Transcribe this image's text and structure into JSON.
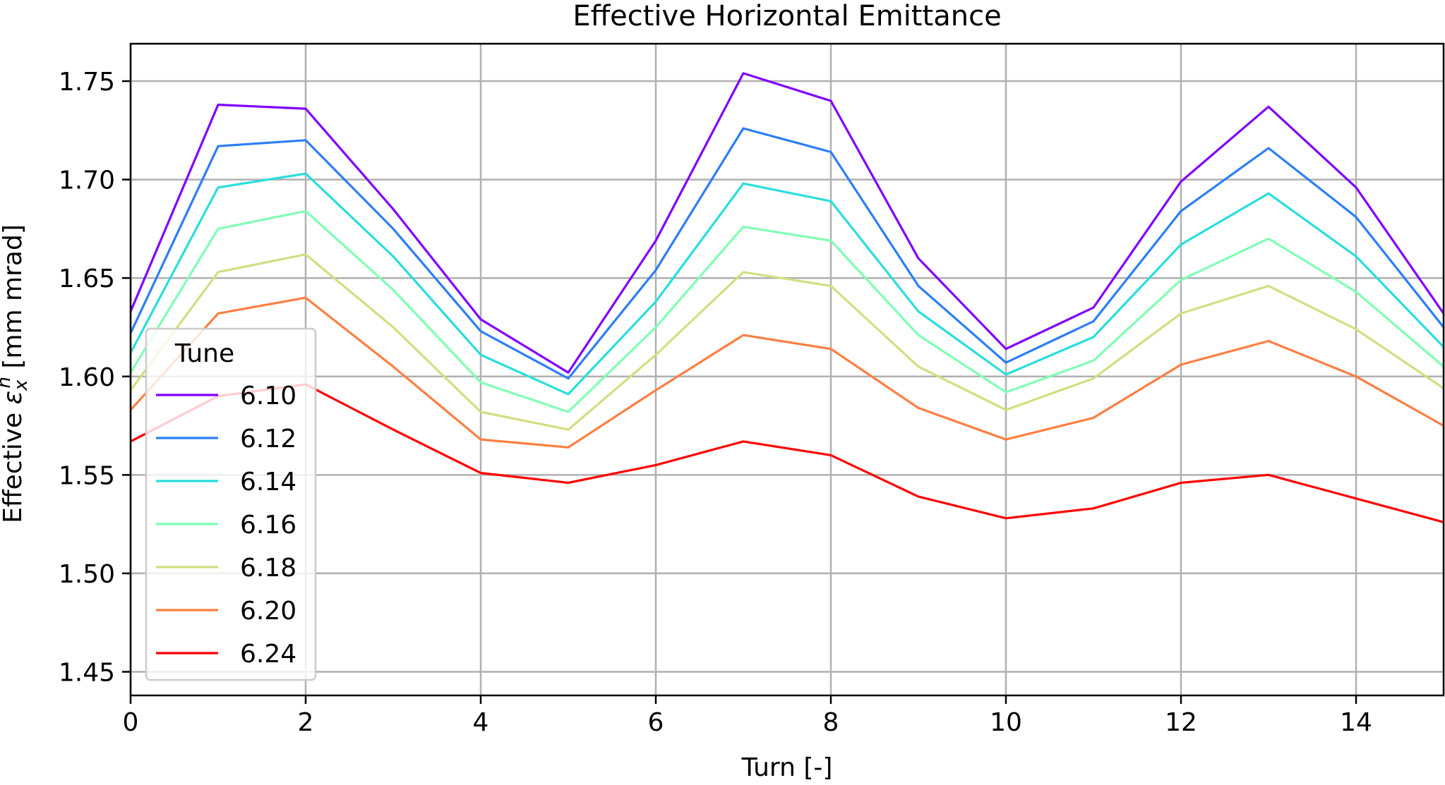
{
  "chart_data": {
    "type": "line",
    "title": "Effective Horizontal Emittance",
    "xlabel": "Turn [-]",
    "ylabel_prefix": "Effective ",
    "ylabel_symbol": "ε",
    "ylabel_sub": "x",
    "ylabel_sup": "n",
    "ylabel_suffix": " [mm mrad]",
    "xlim": [
      0,
      15
    ],
    "ylim": [
      1.438,
      1.769
    ],
    "xticks": [
      0,
      2,
      4,
      6,
      8,
      10,
      12,
      14
    ],
    "yticks": [
      1.45,
      1.5,
      1.55,
      1.6,
      1.65,
      1.7,
      1.75
    ],
    "xtick_labels": [
      "0",
      "2",
      "4",
      "6",
      "8",
      "10",
      "12",
      "14"
    ],
    "ytick_labels": [
      "1.45",
      "1.50",
      "1.55",
      "1.60",
      "1.65",
      "1.70",
      "1.75"
    ],
    "grid": true,
    "legend_title": "Tune",
    "legend_position": "lower left",
    "x": [
      0,
      1,
      2,
      3,
      4,
      5,
      6,
      7,
      8,
      9,
      10,
      11,
      12,
      13,
      14,
      15
    ],
    "series": [
      {
        "name": "6.10",
        "color": "#8000ff",
        "values": [
          1.633,
          1.738,
          1.736,
          1.685,
          1.629,
          1.602,
          1.669,
          1.754,
          1.74,
          1.66,
          1.614,
          1.635,
          1.699,
          1.737,
          1.696,
          1.632
        ]
      },
      {
        "name": "6.12",
        "color": "#2c7ef7",
        "values": [
          1.622,
          1.717,
          1.72,
          1.675,
          1.623,
          1.599,
          1.654,
          1.726,
          1.714,
          1.646,
          1.607,
          1.628,
          1.684,
          1.716,
          1.681,
          1.625
        ]
      },
      {
        "name": "6.14",
        "color": "#2adddd",
        "values": [
          1.612,
          1.696,
          1.703,
          1.661,
          1.611,
          1.591,
          1.638,
          1.698,
          1.689,
          1.633,
          1.601,
          1.62,
          1.667,
          1.693,
          1.661,
          1.615
        ]
      },
      {
        "name": "6.16",
        "color": "#80ffb4",
        "values": [
          1.602,
          1.675,
          1.684,
          1.644,
          1.597,
          1.582,
          1.625,
          1.676,
          1.669,
          1.621,
          1.592,
          1.608,
          1.649,
          1.67,
          1.643,
          1.605
        ]
      },
      {
        "name": "6.18",
        "color": "#d4dd80",
        "values": [
          1.593,
          1.653,
          1.662,
          1.625,
          1.582,
          1.573,
          1.611,
          1.653,
          1.646,
          1.605,
          1.583,
          1.599,
          1.632,
          1.646,
          1.624,
          1.594
        ]
      },
      {
        "name": "6.20",
        "color": "#ff7e41",
        "values": [
          1.583,
          1.632,
          1.64,
          1.605,
          1.568,
          1.564,
          1.593,
          1.621,
          1.614,
          1.584,
          1.568,
          1.579,
          1.606,
          1.618,
          1.6,
          1.575
        ]
      },
      {
        "name": "6.24",
        "color": "#ff0000",
        "values": [
          1.567,
          1.59,
          1.596,
          1.573,
          1.551,
          1.546,
          1.555,
          1.567,
          1.56,
          1.539,
          1.528,
          1.533,
          1.546,
          1.55,
          1.538,
          1.526
        ]
      }
    ]
  }
}
